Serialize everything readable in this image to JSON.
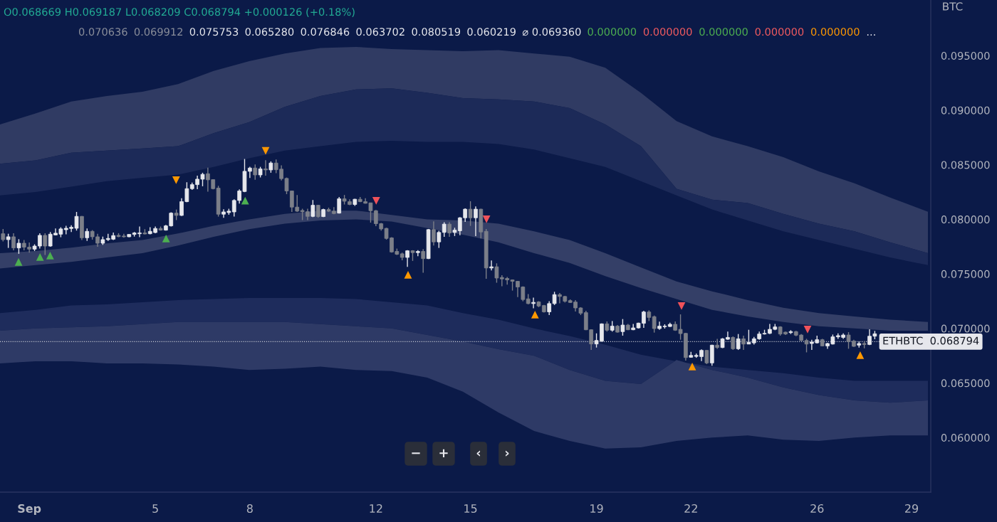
{
  "chart_data": {
    "type": "candlestick",
    "ylabel": "BTC",
    "annotations": [
      "O0.068669 H0.069187 L0.068209 C0.068794 +0.000126 (+0.18%)",
      "0.070636",
      "0.069912",
      "0.075753",
      "0.065280",
      "0.076846",
      "0.063702",
      "0.080519",
      "0.060219",
      "⌀ 0.069360",
      "0.000000",
      "0.000000",
      "0.000000",
      "0.000000",
      "0.000000",
      "...",
      "−",
      "+",
      "‹",
      "›"
    ],
    "xlim": [
      0.07,
      29.61
    ],
    "ylim": [
      0.055,
      0.1001
    ],
    "xticks": [
      {
        "value": 1,
        "label": "Sep"
      },
      5,
      8,
      12,
      15,
      19,
      22,
      26,
      29
    ],
    "yticks": [
      {
        "value": 0.06,
        "label": "0.060000"
      },
      {
        "value": 0.065,
        "label": "0.065000"
      },
      {
        "value": 0.07,
        "label": "0.070000"
      },
      {
        "value": 0.075,
        "label": "0.075000"
      },
      {
        "value": 0.08,
        "label": "0.080000"
      },
      {
        "value": 0.085,
        "label": "0.085000"
      },
      {
        "value": 0.09,
        "label": "0.090000"
      },
      {
        "value": 0.095,
        "label": "0.095000"
      }
    ],
    "ref_lines": [
      {
        "axis": "y",
        "value": 0.068794,
        "label": "ETHBTC  0.068794",
        "line_style": "dotted",
        "color": "#c8cbd4"
      }
    ],
    "x": [
      0.167,
      0.333,
      0.5,
      0.667,
      0.833,
      1,
      1.167,
      1.333,
      1.5,
      1.667,
      1.833,
      2,
      2.167,
      2.333,
      2.5,
      2.667,
      2.833,
      3,
      3.167,
      3.333,
      3.5,
      3.667,
      3.833,
      4,
      4.167,
      4.333,
      4.5,
      4.667,
      4.833,
      5,
      5.167,
      5.333,
      5.5,
      5.667,
      5.833,
      6,
      6.167,
      6.333,
      6.5,
      6.667,
      6.833,
      7,
      7.167,
      7.333,
      7.5,
      7.667,
      7.833,
      8,
      8.167,
      8.333,
      8.5,
      8.667,
      8.833,
      9,
      9.167,
      9.333,
      9.5,
      9.667,
      9.833,
      10,
      10.167,
      10.333,
      10.5,
      10.667,
      10.833,
      11,
      11.167,
      11.333,
      11.5,
      11.667,
      11.833,
      12,
      12.167,
      12.333,
      12.5,
      12.667,
      12.833,
      13,
      13.167,
      13.333,
      13.5,
      13.667,
      13.833,
      14,
      14.167,
      14.333,
      14.5,
      14.667,
      14.833,
      15,
      15.167,
      15.333,
      15.5,
      15.667,
      15.833,
      16,
      16.167,
      16.333,
      16.5,
      16.667,
      16.833,
      17,
      17.167,
      17.333,
      17.5,
      17.667,
      17.833,
      18,
      18.167,
      18.333,
      18.5,
      18.667,
      18.833,
      19,
      19.167,
      19.333,
      19.5,
      19.667,
      19.833,
      20,
      20.167,
      20.333,
      20.5,
      20.667,
      20.833,
      21,
      21.167,
      21.333,
      21.5,
      21.667,
      21.833,
      22,
      22.167,
      22.333,
      22.5,
      22.667,
      22.833,
      23,
      23.167,
      23.333,
      23.5,
      23.667,
      23.833,
      24,
      24.167,
      24.333,
      24.5,
      24.667,
      24.833,
      25,
      25.167,
      25.333,
      25.5,
      25.667,
      25.833,
      26,
      26.167,
      26.333,
      26.5,
      26.667,
      26.833,
      27,
      27.167,
      27.333,
      27.5,
      27.667,
      27.833
    ],
    "ohlc": [
      [
        0.07868,
        0.07912,
        0.07797,
        0.07814
      ],
      [
        0.07814,
        0.07868,
        0.07738,
        0.0784
      ],
      [
        0.0784,
        0.07873,
        0.07716,
        0.07738
      ],
      [
        0.07738,
        0.07818,
        0.07684,
        0.07781
      ],
      [
        0.07781,
        0.0781,
        0.07716,
        0.07745
      ],
      [
        0.07745,
        0.07788,
        0.07695,
        0.07727
      ],
      [
        0.07727,
        0.07771,
        0.0771,
        0.07755
      ],
      [
        0.07755,
        0.07873,
        0.07732,
        0.07853
      ],
      [
        0.07853,
        0.07873,
        0.07673,
        0.07755
      ],
      [
        0.07755,
        0.07884,
        0.07749,
        0.07864
      ],
      [
        0.07857,
        0.07916,
        0.07853,
        0.07873
      ],
      [
        0.07864,
        0.07927,
        0.07836,
        0.07912
      ],
      [
        0.07905,
        0.0794,
        0.07862,
        0.07918
      ],
      [
        0.07916,
        0.07945,
        0.07884,
        0.07927
      ],
      [
        0.07918,
        0.08068,
        0.07897,
        0.08027
      ],
      [
        0.08027,
        0.08031,
        0.0781,
        0.07831
      ],
      [
        0.07831,
        0.07916,
        0.07803,
        0.0789
      ],
      [
        0.0789,
        0.07901,
        0.07814,
        0.0784
      ],
      [
        0.0784,
        0.07868,
        0.07749,
        0.07781
      ],
      [
        0.07781,
        0.07842,
        0.07766,
        0.07814
      ],
      [
        0.07814,
        0.07868,
        0.07803,
        0.07825
      ],
      [
        0.07818,
        0.07879,
        0.0781,
        0.07851
      ],
      [
        0.07853,
        0.07873,
        0.07836,
        0.07842
      ],
      [
        0.07847,
        0.07868,
        0.07831,
        0.0784
      ],
      [
        0.0784,
        0.07862,
        0.07836,
        0.07862
      ],
      [
        0.07862,
        0.07884,
        0.07842,
        0.07875
      ],
      [
        0.07868,
        0.07934,
        0.07836,
        0.07875
      ],
      [
        0.07875,
        0.0791,
        0.07862,
        0.07866
      ],
      [
        0.07868,
        0.07927,
        0.07862,
        0.0789
      ],
      [
        0.07879,
        0.07934,
        0.07873,
        0.07916
      ],
      [
        0.07916,
        0.07934,
        0.07897,
        0.07901
      ],
      [
        0.07901,
        0.07949,
        0.07897,
        0.0794
      ],
      [
        0.0794,
        0.08064,
        0.07934,
        0.08057
      ],
      [
        0.08057,
        0.0809,
        0.07993,
        0.08036
      ],
      [
        0.08036,
        0.08194,
        0.08031,
        0.08162
      ],
      [
        0.08162,
        0.0834,
        0.08157,
        0.08281
      ],
      [
        0.08281,
        0.08336,
        0.0827,
        0.08318
      ],
      [
        0.08318,
        0.08401,
        0.08277,
        0.08368
      ],
      [
        0.08368,
        0.08427,
        0.08303,
        0.08412
      ],
      [
        0.08418,
        0.08473,
        0.08253,
        0.08362
      ],
      [
        0.08364,
        0.08368,
        0.08275,
        0.08281
      ],
      [
        0.08286,
        0.08307,
        0.08025,
        0.08047
      ],
      [
        0.08047,
        0.08092,
        0.08014,
        0.08068
      ],
      [
        0.08062,
        0.08097,
        0.08042,
        0.08075
      ],
      [
        0.08068,
        0.08184,
        0.08025,
        0.08173
      ],
      [
        0.08173,
        0.08275,
        0.08144,
        0.0826
      ],
      [
        0.08255,
        0.08553,
        0.08249,
        0.0844
      ],
      [
        0.0844,
        0.08481,
        0.08379,
        0.0847
      ],
      [
        0.0847,
        0.08503,
        0.08362,
        0.08407
      ],
      [
        0.08407,
        0.08481,
        0.08384,
        0.08462
      ],
      [
        0.08462,
        0.08542,
        0.08401,
        0.08453
      ],
      [
        0.08453,
        0.08531,
        0.08427,
        0.08516
      ],
      [
        0.08516,
        0.08549,
        0.08423,
        0.08455
      ],
      [
        0.0846,
        0.08494,
        0.08357,
        0.08373
      ],
      [
        0.08375,
        0.08383,
        0.08231,
        0.0826
      ],
      [
        0.0826,
        0.08264,
        0.08068,
        0.08112
      ],
      [
        0.08112,
        0.08223,
        0.08068,
        0.08075
      ],
      [
        0.08081,
        0.08097,
        0.07993,
        0.0807
      ],
      [
        0.0807,
        0.08097,
        0.07993,
        0.08027
      ],
      [
        0.08027,
        0.08177,
        0.0802,
        0.08129
      ],
      [
        0.08129,
        0.08133,
        0.08014,
        0.08025
      ],
      [
        0.08025,
        0.08097,
        0.0802,
        0.0809
      ],
      [
        0.0809,
        0.08107,
        0.08068,
        0.08075
      ],
      [
        0.08075,
        0.08112,
        0.08047,
        0.08053
      ],
      [
        0.08057,
        0.08205,
        0.08053,
        0.08188
      ],
      [
        0.08188,
        0.08223,
        0.08136,
        0.08166
      ],
      [
        0.08162,
        0.08184,
        0.08129,
        0.08136
      ],
      [
        0.08136,
        0.08188,
        0.08123,
        0.08184
      ],
      [
        0.08184,
        0.08205,
        0.08157,
        0.08162
      ],
      [
        0.08162,
        0.08194,
        0.08144,
        0.08147
      ],
      [
        0.08151,
        0.08151,
        0.0797,
        0.08079
      ],
      [
        0.08079,
        0.08086,
        0.07938,
        0.0796
      ],
      [
        0.0796,
        0.07966,
        0.07897,
        0.07912
      ],
      [
        0.07917,
        0.07923,
        0.07814,
        0.07825
      ],
      [
        0.0783,
        0.07836,
        0.07695,
        0.07701
      ],
      [
        0.07706,
        0.07732,
        0.07673,
        0.0768
      ],
      [
        0.07684,
        0.07695,
        0.07625,
        0.07651
      ],
      [
        0.07651,
        0.07717,
        0.07565,
        0.07712
      ],
      [
        0.07712,
        0.07717,
        0.07619,
        0.07695
      ],
      [
        0.07695,
        0.07717,
        0.07662,
        0.07706
      ],
      [
        0.07706,
        0.07727,
        0.0751,
        0.0764
      ],
      [
        0.0764,
        0.07912,
        0.07636,
        0.07906
      ],
      [
        0.07906,
        0.07982,
        0.0776,
        0.07793
      ],
      [
        0.07793,
        0.07895,
        0.07738,
        0.0788
      ],
      [
        0.0788,
        0.07973,
        0.0784,
        0.07956
      ],
      [
        0.07956,
        0.07973,
        0.0784,
        0.07875
      ],
      [
        0.0788,
        0.07923,
        0.07847,
        0.07901
      ],
      [
        0.07895,
        0.08021,
        0.07854,
        0.08014
      ],
      [
        0.08014,
        0.08101,
        0.07977,
        0.08093
      ],
      [
        0.08093,
        0.08166,
        0.0794,
        0.08014
      ],
      [
        0.08014,
        0.08118,
        0.07847,
        0.08093
      ],
      [
        0.08093,
        0.08097,
        0.07825,
        0.07884
      ],
      [
        0.0789,
        0.07912,
        0.07456,
        0.07554
      ],
      [
        0.07554,
        0.07623,
        0.07532,
        0.07565
      ],
      [
        0.07565,
        0.07597,
        0.07419,
        0.07462
      ],
      [
        0.07467,
        0.07488,
        0.07386,
        0.07454
      ],
      [
        0.07458,
        0.07471,
        0.07402,
        0.07445
      ],
      [
        0.07445,
        0.07449,
        0.07347,
        0.07432
      ],
      [
        0.07432,
        0.07436,
        0.07287,
        0.0738
      ],
      [
        0.0738,
        0.07386,
        0.07249,
        0.07265
      ],
      [
        0.07271,
        0.07315,
        0.07221,
        0.07228
      ],
      [
        0.07228,
        0.07282,
        0.07184,
        0.07239
      ],
      [
        0.07243,
        0.0725,
        0.07195,
        0.07206
      ],
      [
        0.0721,
        0.07215,
        0.07145,
        0.07152
      ],
      [
        0.07152,
        0.0725,
        0.07123,
        0.07228
      ],
      [
        0.07228,
        0.07336,
        0.07215,
        0.0731
      ],
      [
        0.0731,
        0.07325,
        0.07231,
        0.07293
      ],
      [
        0.07293,
        0.07299,
        0.07238,
        0.07249
      ],
      [
        0.07255,
        0.07266,
        0.07234,
        0.07238
      ],
      [
        0.07242,
        0.0726,
        0.07155,
        0.07188
      ],
      [
        0.07188,
        0.07195,
        0.07123,
        0.0714
      ],
      [
        0.07145,
        0.07162,
        0.06984,
        0.06988
      ],
      [
        0.06988,
        0.06992,
        0.06803,
        0.06858
      ],
      [
        0.06858,
        0.06955,
        0.06825,
        0.0689
      ],
      [
        0.06884,
        0.07047,
        0.06879,
        0.07042
      ],
      [
        0.07042,
        0.07064,
        0.06971,
        0.06984
      ],
      [
        0.06984,
        0.07068,
        0.06971,
        0.07021
      ],
      [
        0.07021,
        0.07031,
        0.06962,
        0.06966
      ],
      [
        0.06971,
        0.07086,
        0.06934,
        0.07031
      ],
      [
        0.07031,
        0.07042,
        0.06984,
        0.06988
      ],
      [
        0.06988,
        0.07042,
        0.06984,
        0.07005
      ],
      [
        0.07005,
        0.07053,
        0.06999,
        0.07049
      ],
      [
        0.07047,
        0.07162,
        0.07005,
        0.07151
      ],
      [
        0.07151,
        0.07166,
        0.07068,
        0.07101
      ],
      [
        0.07108,
        0.07118,
        0.06962,
        0.06999
      ],
      [
        0.06999,
        0.07062,
        0.06988,
        0.07021
      ],
      [
        0.07016,
        0.07038,
        0.06999,
        0.07021
      ],
      [
        0.07018,
        0.07053,
        0.07014,
        0.07038
      ],
      [
        0.07038,
        0.07064,
        0.06977,
        0.06984
      ],
      [
        0.06992,
        0.07129,
        0.06897,
        0.06953
      ],
      [
        0.06955,
        0.0696,
        0.06705,
        0.06733
      ],
      [
        0.06736,
        0.06786,
        0.06731,
        0.06753
      ],
      [
        0.06744,
        0.0677,
        0.06731,
        0.06753
      ],
      [
        0.06742,
        0.06808,
        0.06701,
        0.06799
      ],
      [
        0.06799,
        0.06803,
        0.06673,
        0.06684
      ],
      [
        0.06684,
        0.06851,
        0.06658,
        0.06847
      ],
      [
        0.06847,
        0.06905,
        0.06814,
        0.06825
      ],
      [
        0.06825,
        0.06912,
        0.0682,
        0.06905
      ],
      [
        0.06901,
        0.06971,
        0.06897,
        0.06918
      ],
      [
        0.06918,
        0.06927,
        0.06803,
        0.06814
      ],
      [
        0.06814,
        0.06949,
        0.06803,
        0.06905
      ],
      [
        0.06905,
        0.06934,
        0.06803,
        0.06857
      ],
      [
        0.06857,
        0.06988,
        0.06857,
        0.06873
      ],
      [
        0.06868,
        0.06923,
        0.06853,
        0.06905
      ],
      [
        0.06905,
        0.06971,
        0.06897,
        0.06949
      ],
      [
        0.06949,
        0.06988,
        0.06944,
        0.06955
      ],
      [
        0.06955,
        0.07042,
        0.06949,
        0.06992
      ],
      [
        0.06992,
        0.07042,
        0.06984,
        0.07014
      ],
      [
        0.07014,
        0.0702,
        0.06934,
        0.06949
      ],
      [
        0.06966,
        0.06971,
        0.0694,
        0.06949
      ],
      [
        0.06962,
        0.06984,
        0.06949,
        0.06971
      ],
      [
        0.06971,
        0.06977,
        0.06929,
        0.06938
      ],
      [
        0.0694,
        0.06949,
        0.06884,
        0.0689
      ],
      [
        0.0689,
        0.06905,
        0.06781,
        0.06857
      ],
      [
        0.06862,
        0.06897,
        0.06803,
        0.06875
      ],
      [
        0.06868,
        0.06934,
        0.06862,
        0.06897
      ],
      [
        0.06897,
        0.06905,
        0.06836,
        0.0684
      ],
      [
        0.0684,
        0.06868,
        0.06814,
        0.06862
      ],
      [
        0.06857,
        0.06944,
        0.06853,
        0.06923
      ],
      [
        0.06923,
        0.06955,
        0.06905,
        0.06934
      ],
      [
        0.06918,
        0.06955,
        0.06905,
        0.0694
      ],
      [
        0.0694,
        0.06966,
        0.06814,
        0.06879
      ],
      [
        0.06884,
        0.06897,
        0.06831,
        0.06836
      ],
      [
        0.06847,
        0.06879,
        0.06825,
        0.06862
      ],
      [
        0.06862,
        0.06884,
        0.06818,
        0.06853
      ],
      [
        0.06853,
        0.06992,
        0.06847,
        0.06929
      ],
      [
        0.06929,
        0.06977,
        0.06901,
        0.06951
      ]
    ],
    "series": [
      {
        "type": "line",
        "color": "#303b63",
        "x": [
          0.07,
          1.2,
          2.33,
          3.46,
          4.59,
          5.72,
          6.85,
          7.98,
          9.11,
          10.24,
          11.37,
          12.5,
          13.63,
          14.76,
          15.89,
          17.02,
          18.15,
          19.28,
          20.41,
          21.54,
          22.67,
          23.8,
          24.93,
          26.06,
          27.19,
          28.32,
          29.52
        ],
        "values": [
          null,
          null,
          null,
          null,
          null,
          null,
          null,
          null,
          null,
          null,
          null,
          null,
          null,
          null,
          null,
          null,
          null,
          null,
          null,
          null,
          null,
          null,
          null,
          null,
          null,
          null,
          null
        ],
        "upper": [
          0.0887,
          0.0897,
          0.0908,
          0.0913,
          0.0917,
          0.0924,
          0.0936,
          0.0945,
          0.0952,
          0.0957,
          0.0958,
          0.0956,
          0.0955,
          0.0954,
          0.0955,
          0.0952,
          0.0949,
          0.0939,
          0.0916,
          0.089,
          0.0876,
          0.0867,
          0.0857,
          0.0844,
          0.0833,
          0.082,
          0.0807
        ],
        "lower": [
          0.0851,
          0.0854,
          0.0861,
          0.0863,
          0.0865,
          0.0867,
          0.0879,
          0.0889,
          0.0903,
          0.0913,
          0.0919,
          0.092,
          0.0916,
          0.0911,
          0.091,
          0.0908,
          0.0902,
          0.0887,
          0.0867,
          0.0828,
          0.0818,
          0.0815,
          0.0805,
          0.0796,
          0.0789,
          0.0779,
          0.0769
        ]
      },
      {
        "type": "line",
        "color": "#1c2a58",
        "x": [
          0.07,
          1.2,
          2.33,
          3.46,
          4.59,
          5.72,
          6.85,
          7.98,
          9.11,
          10.24,
          11.37,
          12.5,
          13.63,
          14.76,
          15.89,
          17.02,
          18.15,
          19.28,
          20.41,
          21.54,
          22.67,
          23.8,
          24.93,
          26.06,
          27.19,
          28.32,
          29.52
        ],
        "values": [
          null,
          null,
          null,
          null,
          null,
          null,
          null,
          null,
          null,
          null,
          null,
          null,
          null,
          null,
          null,
          null,
          null,
          null,
          null,
          null,
          null,
          null,
          null,
          null,
          null,
          null,
          null
        ],
        "upper": [
          0.0851,
          0.0854,
          0.0861,
          0.0863,
          0.0865,
          0.0867,
          0.0879,
          0.0889,
          0.0903,
          0.0913,
          0.0919,
          0.092,
          0.0916,
          0.0911,
          0.091,
          0.0908,
          0.0902,
          0.0887,
          0.0867,
          0.0828,
          0.0818,
          0.0815,
          0.0805,
          0.0796,
          0.0789,
          0.0779,
          0.0769
        ],
        "lower": [
          0.0822,
          0.0825,
          0.083,
          0.0835,
          0.0838,
          0.0841,
          0.0848,
          0.0856,
          0.0863,
          0.0867,
          0.0871,
          0.0872,
          0.0871,
          0.0871,
          0.0869,
          0.0864,
          0.0856,
          0.0848,
          0.0835,
          0.0822,
          0.0809,
          0.0799,
          0.0789,
          0.0781,
          0.0773,
          0.0765,
          0.0758
        ]
      },
      {
        "type": "line",
        "color": "#343f67",
        "x": [
          0.07,
          1.2,
          2.33,
          3.46,
          4.59,
          5.72,
          6.85,
          7.98,
          9.11,
          10.24,
          11.37,
          12.5,
          13.63,
          14.76,
          15.89,
          17.02,
          18.15,
          19.28,
          20.41,
          21.54,
          22.67,
          23.8,
          24.93,
          26.06,
          27.19,
          28.32,
          29.52
        ],
        "values": [
          null,
          null,
          null,
          null,
          null,
          null,
          null,
          null,
          null,
          null,
          null,
          null,
          null,
          null,
          null,
          null,
          null,
          null,
          null,
          null,
          null,
          null,
          null,
          null,
          null,
          null,
          null
        ],
        "upper": [
          0.0769,
          0.0771,
          0.0774,
          0.0778,
          0.0781,
          0.0787,
          0.0794,
          0.08,
          0.0805,
          0.0808,
          0.0808,
          0.0804,
          0.08,
          0.0799,
          0.0796,
          0.0789,
          0.0781,
          0.0769,
          0.0756,
          0.0743,
          0.0734,
          0.0726,
          0.0719,
          0.0714,
          0.0711,
          0.0708,
          0.0706
        ],
        "lower": [
          0.0755,
          0.0758,
          0.0761,
          0.0765,
          0.0769,
          0.0776,
          0.0784,
          0.0791,
          0.0796,
          0.0799,
          0.08,
          0.0798,
          0.0792,
          0.0786,
          0.0779,
          0.0769,
          0.076,
          0.0748,
          0.0737,
          0.0727,
          0.0717,
          0.0711,
          0.0706,
          0.0702,
          0.07,
          0.0698,
          0.0698
        ]
      },
      {
        "type": "line",
        "color": "#1e2c5c",
        "x": [
          0.07,
          1.2,
          2.33,
          3.46,
          4.59,
          5.72,
          6.85,
          7.98,
          9.11,
          10.24,
          11.37,
          12.5,
          13.63,
          14.76,
          15.89,
          17.02,
          18.15,
          19.28,
          20.41,
          21.54,
          22.67,
          23.8,
          24.93,
          26.06,
          27.19,
          28.32,
          29.52
        ],
        "values": [
          null,
          null,
          null,
          null,
          null,
          null,
          null,
          null,
          null,
          null,
          null,
          null,
          null,
          null,
          null,
          null,
          null,
          null,
          null,
          null,
          null,
          null,
          null,
          null,
          null,
          null,
          null
        ],
        "upper": [
          0.0714,
          0.0717,
          0.0721,
          0.0722,
          0.0724,
          0.0726,
          0.0727,
          0.0728,
          0.0728,
          0.0728,
          0.0727,
          0.0724,
          0.0721,
          0.0714,
          0.0708,
          0.07,
          0.0693,
          0.0685,
          0.0676,
          0.067,
          0.0665,
          0.0662,
          0.0659,
          0.0655,
          0.0652,
          0.0652,
          0.0652
        ],
        "lower": [
          0.0698,
          0.07,
          0.0701,
          0.0702,
          0.0704,
          0.0706,
          0.0706,
          0.0706,
          0.0706,
          0.0704,
          0.0702,
          0.07,
          0.0694,
          0.0688,
          0.0681,
          0.0675,
          0.0662,
          0.0652,
          0.0649,
          0.0671,
          0.0662,
          0.0655,
          0.0646,
          0.0639,
          0.0634,
          0.0632,
          0.0634
        ]
      },
      {
        "type": "line",
        "color": "#2e3a66",
        "x": [
          0.07,
          1.2,
          2.33,
          3.46,
          4.59,
          5.72,
          6.85,
          7.98,
          9.11,
          10.24,
          11.37,
          12.5,
          13.63,
          14.76,
          15.89,
          17.02,
          18.15,
          19.28,
          20.41,
          21.54,
          22.67,
          23.8,
          24.93,
          26.06,
          27.19,
          28.32,
          29.52
        ],
        "values": [
          null,
          null,
          null,
          null,
          null,
          null,
          null,
          null,
          null,
          null,
          null,
          null,
          null,
          null,
          null,
          null,
          null,
          null,
          null,
          null,
          null,
          null,
          null,
          null,
          null,
          null,
          null
        ],
        "upper": [
          0.0698,
          0.07,
          0.0701,
          0.0702,
          0.0704,
          0.0706,
          0.0706,
          0.0706,
          0.0706,
          0.0704,
          0.0702,
          0.07,
          0.0694,
          0.0688,
          0.0681,
          0.0675,
          0.0662,
          0.0652,
          0.0649,
          0.0671,
          0.0662,
          0.0655,
          0.0646,
          0.0639,
          0.0634,
          0.0632,
          0.0634
        ],
        "lower": [
          0.0668,
          0.067,
          0.067,
          0.0668,
          0.0668,
          0.0667,
          0.0665,
          0.0662,
          0.0663,
          0.0665,
          0.0662,
          0.0661,
          0.0655,
          0.0642,
          0.0623,
          0.0606,
          0.0597,
          0.059,
          0.0591,
          0.0597,
          0.06,
          0.0602,
          0.0598,
          0.0597,
          0.06,
          0.0602,
          0.0602
        ]
      },
      {
        "type": "scatter",
        "marker": "triangle",
        "color": "#4caf50",
        "x": [
          0.66,
          1.34,
          1.66,
          5.34,
          7.85
        ],
        "values": [
          0.0761,
          0.07655,
          0.07668,
          0.07825,
          0.08172
        ]
      },
      {
        "type": "scatter",
        "marker": "triangle-down",
        "color": "#ff9800",
        "x": [
          5.66,
          8.5
        ],
        "values": [
          0.08359,
          0.08627
        ]
      },
      {
        "type": "scatter",
        "marker": "triangle",
        "color": "#ff9800",
        "x": [
          13.02,
          17.05,
          22.04,
          27.37
        ],
        "values": [
          0.07492,
          0.07127,
          0.06651,
          0.06755
        ]
      },
      {
        "type": "scatter",
        "marker": "triangle-down",
        "color": "#f0525a",
        "x": [
          12.01,
          15.51,
          21.7,
          25.7
        ],
        "values": [
          0.0817,
          0.08001,
          0.07205,
          0.0699
        ]
      }
    ]
  }
}
